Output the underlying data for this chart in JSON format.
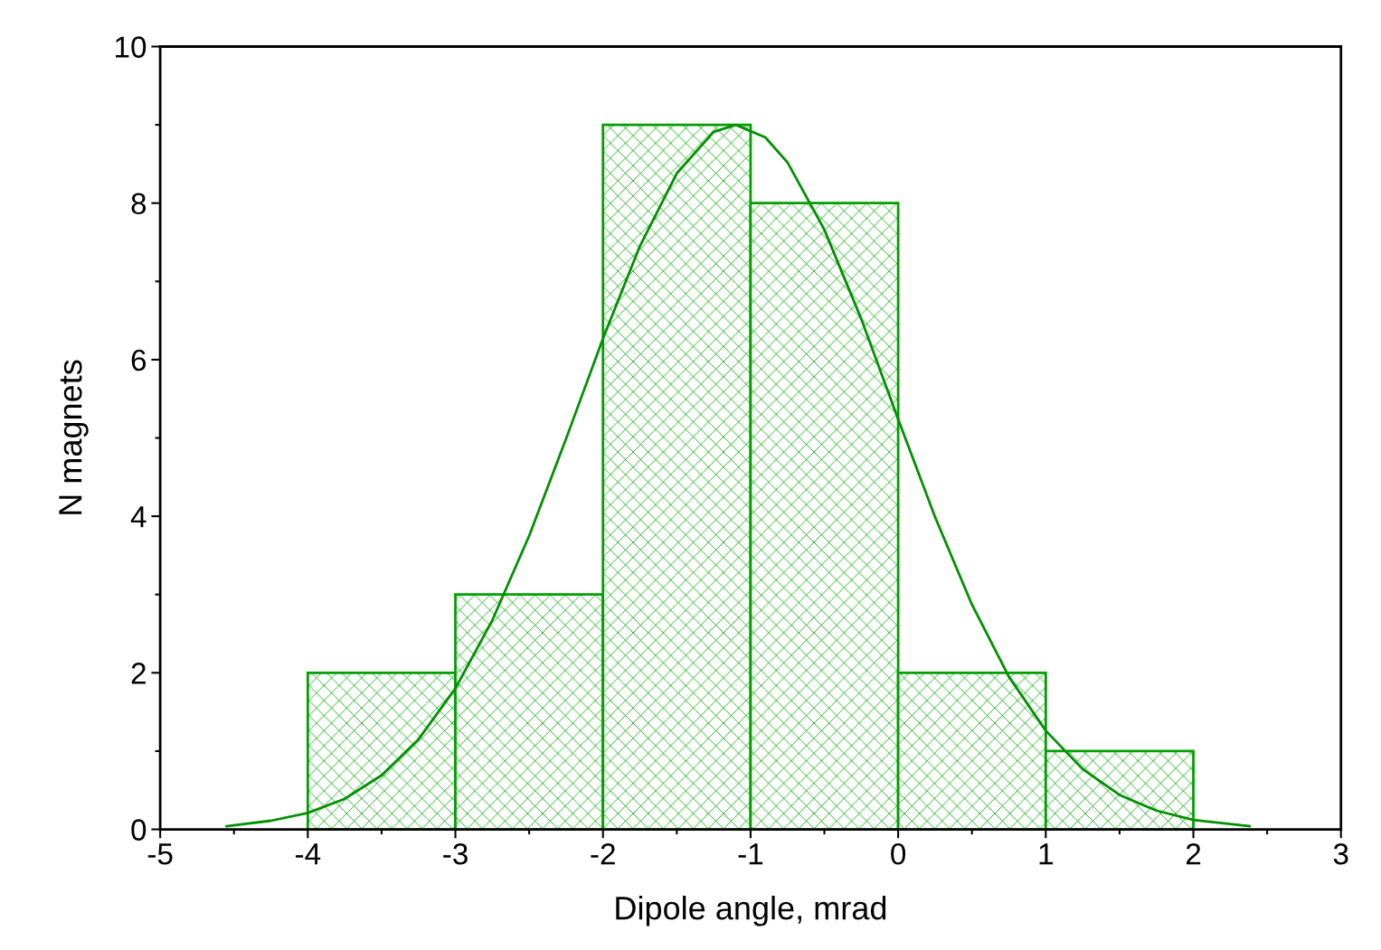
{
  "chart_data": {
    "type": "histogram",
    "xlabel": "Dipole angle, mrad",
    "ylabel": "N magnets",
    "bins": [
      -4,
      -3,
      -2,
      -1,
      0,
      1,
      2
    ],
    "values": [
      2,
      3,
      9,
      8,
      2,
      1
    ],
    "color": "#00a000",
    "series": [
      {
        "type": "line",
        "color": "#009000",
        "x": [
          -4.55,
          -4.25,
          -4,
          -3.75,
          -3.5,
          -3.25,
          -3,
          -2.75,
          -2.5,
          -2.25,
          -2,
          -1.75,
          -1.5,
          -1.25,
          -1.1,
          -0.9,
          -0.75,
          -0.5,
          -0.25,
          0,
          0.25,
          0.5,
          0.75,
          1,
          1.25,
          1.5,
          1.75,
          2,
          2.38
        ],
        "values": [
          0.04,
          0.11,
          0.21,
          0.39,
          0.69,
          1.15,
          1.8,
          2.67,
          3.75,
          4.99,
          6.27,
          7.45,
          8.38,
          8.91,
          9,
          8.84,
          8.52,
          7.66,
          6.52,
          5.24,
          3.99,
          2.87,
          1.95,
          1.26,
          0.77,
          0.44,
          0.24,
          0.12,
          0.04
        ]
      }
    ],
    "xlim": [
      -5,
      3
    ],
    "xticks": [
      -5,
      -4,
      -3,
      -2,
      -1,
      0,
      1,
      2,
      3
    ],
    "ylim": [
      0,
      10
    ],
    "yticks": [
      0,
      2,
      4,
      6,
      8,
      10
    ],
    "grid": false,
    "legend": false,
    "marker": "none",
    "line_style": "solid"
  }
}
